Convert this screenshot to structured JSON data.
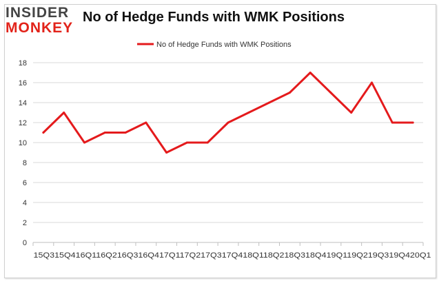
{
  "brand": {
    "line1": "INSIDER",
    "line2": "MONKEY"
  },
  "chart_data": {
    "type": "line",
    "title": "No of Hedge Funds with WMK Positions",
    "xlabel": "",
    "ylabel": "",
    "legend": "top-center",
    "grid": true,
    "line_color": "#e41a1c",
    "ylim": [
      0,
      18
    ],
    "yticks": [
      0,
      2,
      4,
      6,
      8,
      10,
      12,
      14,
      16,
      18
    ],
    "tick_label_run": "15Q315Q416Q116Q216Q316Q417Q117Q217Q317Q418Q118Q218Q318Q419Q119Q219Q319Q420Q1",
    "categories": [
      "15Q3",
      "15Q4",
      "16Q1",
      "16Q2",
      "16Q3",
      "16Q4",
      "17Q1",
      "17Q2",
      "17Q3",
      "17Q4",
      "18Q1",
      "18Q2",
      "18Q3",
      "18Q4",
      "19Q1",
      "19Q2",
      "19Q3",
      "19Q4",
      "20Q1"
    ],
    "series": [
      {
        "name": "No of Hedge Funds with WMK Positions",
        "values": [
          11,
          13,
          10,
          11,
          11,
          12,
          9,
          10,
          10,
          12,
          13,
          14,
          15,
          17,
          15,
          13,
          16,
          12,
          12
        ]
      }
    ]
  }
}
